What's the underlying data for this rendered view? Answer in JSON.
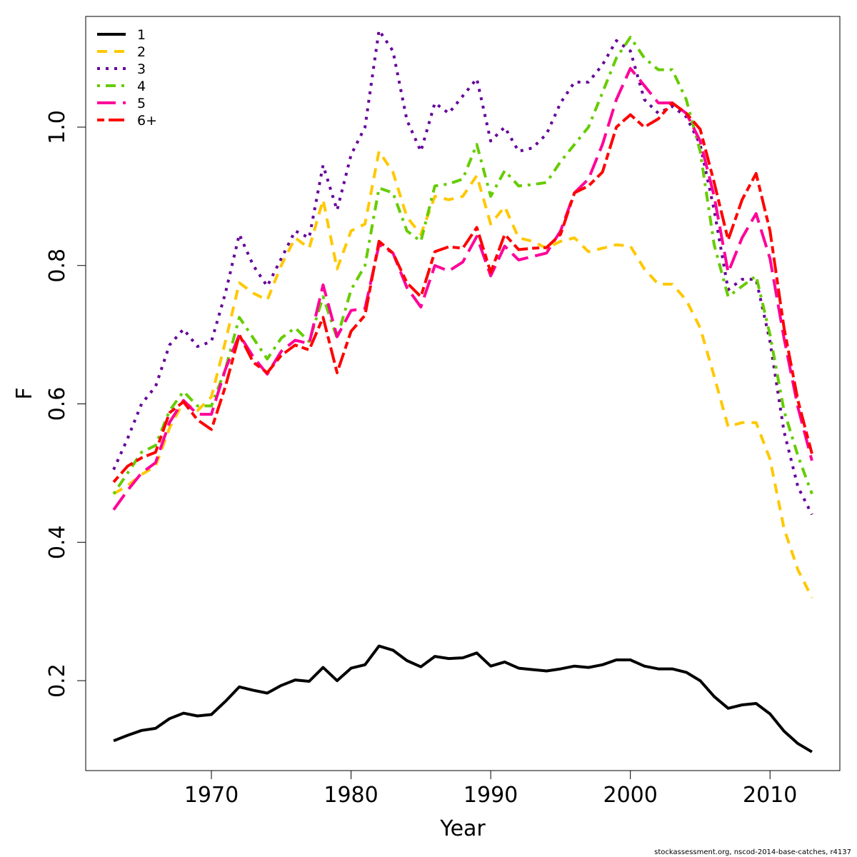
{
  "chart_data": {
    "type": "line",
    "xlabel": "Year",
    "ylabel": "F",
    "xlim": [
      1961,
      2015
    ],
    "ylim": [
      0.07,
      1.16
    ],
    "xticks": [
      1970,
      1980,
      1990,
      2000,
      2010
    ],
    "yticks": [
      0.2,
      0.4,
      0.6,
      0.8,
      1.0
    ],
    "ytick_labels": [
      "0.2",
      "0.4",
      "0.6",
      "0.8",
      "1.0"
    ],
    "legend_position": "top-left",
    "x": [
      1963,
      1964,
      1965,
      1966,
      1967,
      1968,
      1969,
      1970,
      1971,
      1972,
      1973,
      1974,
      1975,
      1976,
      1977,
      1978,
      1979,
      1980,
      1981,
      1982,
      1983,
      1984,
      1985,
      1986,
      1987,
      1988,
      1989,
      1990,
      1991,
      1992,
      1993,
      1994,
      1995,
      1996,
      1997,
      1998,
      1999,
      2000,
      2001,
      2002,
      2003,
      2004,
      2005,
      2006,
      2007,
      2008,
      2009,
      2010,
      2011,
      2012,
      2013
    ],
    "series": [
      {
        "name": "1",
        "color": "#000000",
        "dash": "solid",
        "values": [
          0.113,
          0.121,
          0.128,
          0.131,
          0.145,
          0.153,
          0.149,
          0.151,
          0.17,
          0.191,
          0.186,
          0.182,
          0.193,
          0.201,
          0.199,
          0.219,
          0.2,
          0.218,
          0.223,
          0.25,
          0.244,
          0.229,
          0.22,
          0.235,
          0.232,
          0.233,
          0.24,
          0.221,
          0.227,
          0.218,
          0.216,
          0.214,
          0.217,
          0.221,
          0.219,
          0.223,
          0.23,
          0.23,
          0.221,
          0.217,
          0.217,
          0.212,
          0.2,
          0.177,
          0.16,
          0.165,
          0.167,
          0.152,
          0.127,
          0.109,
          0.097
        ]
      },
      {
        "name": "2",
        "color": "#FFC800",
        "dash": "dashed",
        "values": [
          0.47,
          0.482,
          0.498,
          0.51,
          0.565,
          0.603,
          0.59,
          0.61,
          0.69,
          0.775,
          0.76,
          0.75,
          0.8,
          0.84,
          0.825,
          0.895,
          0.795,
          0.85,
          0.86,
          0.965,
          0.935,
          0.87,
          0.845,
          0.9,
          0.895,
          0.9,
          0.93,
          0.86,
          0.885,
          0.84,
          0.835,
          0.825,
          0.835,
          0.84,
          0.82,
          0.825,
          0.83,
          0.828,
          0.795,
          0.773,
          0.773,
          0.75,
          0.71,
          0.64,
          0.567,
          0.573,
          0.573,
          0.52,
          0.42,
          0.36,
          0.32
        ]
      },
      {
        "name": "3",
        "color": "#660099",
        "dash": "dotted",
        "values": [
          0.505,
          0.55,
          0.6,
          0.625,
          0.685,
          0.708,
          0.683,
          0.69,
          0.76,
          0.845,
          0.8,
          0.77,
          0.81,
          0.85,
          0.84,
          0.945,
          0.88,
          0.96,
          1.0,
          1.14,
          1.11,
          1.01,
          0.965,
          1.035,
          1.02,
          1.045,
          1.07,
          0.98,
          1.0,
          0.965,
          0.97,
          0.99,
          1.035,
          1.065,
          1.065,
          1.09,
          1.125,
          1.11,
          1.04,
          1.02,
          1.03,
          1.015,
          0.975,
          0.88,
          0.765,
          0.78,
          0.78,
          0.69,
          0.56,
          0.48,
          0.44
        ]
      },
      {
        "name": "4",
        "color": "#66CC00",
        "dash": "dashdot",
        "values": [
          0.47,
          0.5,
          0.53,
          0.54,
          0.59,
          0.618,
          0.597,
          0.597,
          0.65,
          0.725,
          0.695,
          0.665,
          0.695,
          0.71,
          0.69,
          0.755,
          0.695,
          0.765,
          0.8,
          0.912,
          0.905,
          0.85,
          0.835,
          0.915,
          0.918,
          0.925,
          0.975,
          0.9,
          0.937,
          0.915,
          0.917,
          0.92,
          0.95,
          0.975,
          1.0,
          1.05,
          1.1,
          1.13,
          1.1,
          1.083,
          1.083,
          1.04,
          0.965,
          0.83,
          0.755,
          0.77,
          0.785,
          0.7,
          0.59,
          0.525,
          0.47
        ]
      },
      {
        "name": "5",
        "color": "#FF0099",
        "dash": "longdash",
        "values": [
          0.447,
          0.475,
          0.5,
          0.515,
          0.573,
          0.605,
          0.585,
          0.585,
          0.65,
          0.7,
          0.668,
          0.643,
          0.676,
          0.692,
          0.687,
          0.772,
          0.697,
          0.735,
          0.738,
          0.83,
          0.818,
          0.768,
          0.74,
          0.8,
          0.792,
          0.805,
          0.842,
          0.785,
          0.828,
          0.808,
          0.813,
          0.818,
          0.85,
          0.905,
          0.925,
          0.975,
          1.04,
          1.085,
          1.06,
          1.035,
          1.035,
          1.02,
          0.98,
          0.9,
          0.79,
          0.84,
          0.875,
          0.81,
          0.695,
          0.595,
          0.518
        ]
      },
      {
        "name": "6+",
        "color": "#FF0000",
        "dash": "twodash",
        "values": [
          0.487,
          0.51,
          0.522,
          0.53,
          0.587,
          0.603,
          0.577,
          0.563,
          0.625,
          0.7,
          0.66,
          0.645,
          0.67,
          0.685,
          0.678,
          0.725,
          0.645,
          0.705,
          0.728,
          0.835,
          0.818,
          0.775,
          0.755,
          0.82,
          0.827,
          0.825,
          0.855,
          0.79,
          0.845,
          0.823,
          0.825,
          0.826,
          0.845,
          0.905,
          0.915,
          0.935,
          1.0,
          1.018,
          1.0,
          1.012,
          1.035,
          1.02,
          0.997,
          0.92,
          0.837,
          0.895,
          0.933,
          0.85,
          0.71,
          0.605,
          0.528
        ]
      }
    ],
    "credit": "stockassessment.org, nscod-2014-base-catches, r4137"
  }
}
